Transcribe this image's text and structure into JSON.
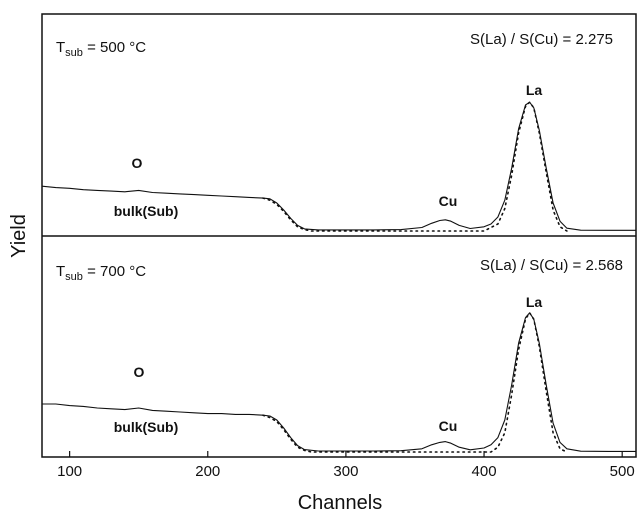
{
  "chart_data": {
    "type": "line",
    "xlabel": "Channels",
    "ylabel": "Yield",
    "xlim": [
      80,
      510
    ],
    "xticks": [
      100,
      200,
      300,
      400,
      500
    ],
    "grid": false,
    "panels": [
      {
        "tsub_main": "T",
        "tsub_sub": "sub",
        "tsub_value": " = 500 °C",
        "ratio_label": "S(La) / S(Cu) = 2.275",
        "ylim": [
          0,
          1.0
        ],
        "labels": {
          "o": "O",
          "bulk": "bulk(Sub)",
          "cu": "Cu",
          "la": "La"
        },
        "series": [
          {
            "style": "solid",
            "x": [
              80,
              90,
              100,
              110,
              120,
              130,
              140,
              150,
              160,
              170,
              180,
              190,
              200,
              210,
              220,
              230,
              240,
              245,
              250,
              255,
              260,
              265,
              270,
              280,
              300,
              320,
              340,
              355,
              362,
              368,
              372,
              376,
              382,
              390,
              400,
              405,
              410,
              415,
              420,
              425,
              430,
              433,
              436,
              440,
              445,
              450,
              455,
              460,
              470,
              490,
              510
            ],
            "y": [
              0.32,
              0.31,
              0.305,
              0.295,
              0.29,
              0.285,
              0.28,
              0.29,
              0.275,
              0.27,
              0.265,
              0.26,
              0.255,
              0.25,
              0.245,
              0.24,
              0.235,
              0.23,
              0.2,
              0.15,
              0.09,
              0.04,
              0.015,
              0.008,
              0.008,
              0.008,
              0.01,
              0.025,
              0.055,
              0.075,
              0.08,
              0.07,
              0.04,
              0.018,
              0.03,
              0.05,
              0.1,
              0.22,
              0.45,
              0.73,
              0.9,
              0.92,
              0.88,
              0.72,
              0.45,
              0.2,
              0.07,
              0.02,
              0.006,
              0.005,
              0.005
            ]
          },
          {
            "style": "dotted",
            "x": [
              240,
              245,
              250,
              255,
              260,
              265,
              270,
              275,
              400,
              410,
              415,
              420,
              425,
              430,
              433,
              436,
              440,
              445,
              450,
              455,
              460
            ],
            "y": [
              0.235,
              0.22,
              0.19,
              0.14,
              0.08,
              0.03,
              0.01,
              0.0,
              0.0,
              0.05,
              0.16,
              0.4,
              0.7,
              0.89,
              0.92,
              0.88,
              0.7,
              0.42,
              0.15,
              0.03,
              0.0
            ]
          }
        ]
      },
      {
        "tsub_main": "T",
        "tsub_sub": "sub",
        "tsub_value": " = 700 °C",
        "ratio_label": "S(La) / S(Cu) = 2.568",
        "ylim": [
          0,
          1.0
        ],
        "labels": {
          "o": "O",
          "bulk": "bulk(Sub)",
          "cu": "Cu",
          "la": "La"
        },
        "series": [
          {
            "style": "solid",
            "x": [
              80,
              90,
              100,
              110,
              120,
              130,
              140,
              150,
              160,
              170,
              180,
              190,
              200,
              210,
              220,
              230,
              240,
              245,
              250,
              255,
              260,
              265,
              270,
              280,
              300,
              320,
              340,
              355,
              362,
              368,
              372,
              376,
              382,
              390,
              400,
              405,
              410,
              415,
              420,
              425,
              430,
              433,
              436,
              440,
              445,
              450,
              455,
              460,
              470,
              490,
              510
            ],
            "y": [
              0.3,
              0.3,
              0.29,
              0.285,
              0.275,
              0.27,
              0.265,
              0.275,
              0.26,
              0.255,
              0.25,
              0.245,
              0.24,
              0.24,
              0.235,
              0.235,
              0.23,
              0.225,
              0.2,
              0.15,
              0.09,
              0.04,
              0.015,
              0.006,
              0.006,
              0.006,
              0.008,
              0.02,
              0.045,
              0.06,
              0.065,
              0.055,
              0.03,
              0.014,
              0.025,
              0.045,
              0.09,
              0.2,
              0.42,
              0.68,
              0.84,
              0.87,
              0.83,
              0.68,
              0.42,
              0.18,
              0.06,
              0.02,
              0.005,
              0.004,
              0.004
            ]
          },
          {
            "style": "dotted",
            "x": [
              240,
              245,
              250,
              255,
              260,
              265,
              270,
              275,
              405,
              410,
              415,
              420,
              425,
              430,
              433,
              436,
              440,
              445,
              450,
              455,
              460
            ],
            "y": [
              0.23,
              0.215,
              0.19,
              0.14,
              0.08,
              0.03,
              0.01,
              0.0,
              0.0,
              0.03,
              0.12,
              0.36,
              0.64,
              0.83,
              0.87,
              0.83,
              0.66,
              0.38,
              0.12,
              0.02,
              0.0
            ]
          }
        ]
      }
    ]
  }
}
